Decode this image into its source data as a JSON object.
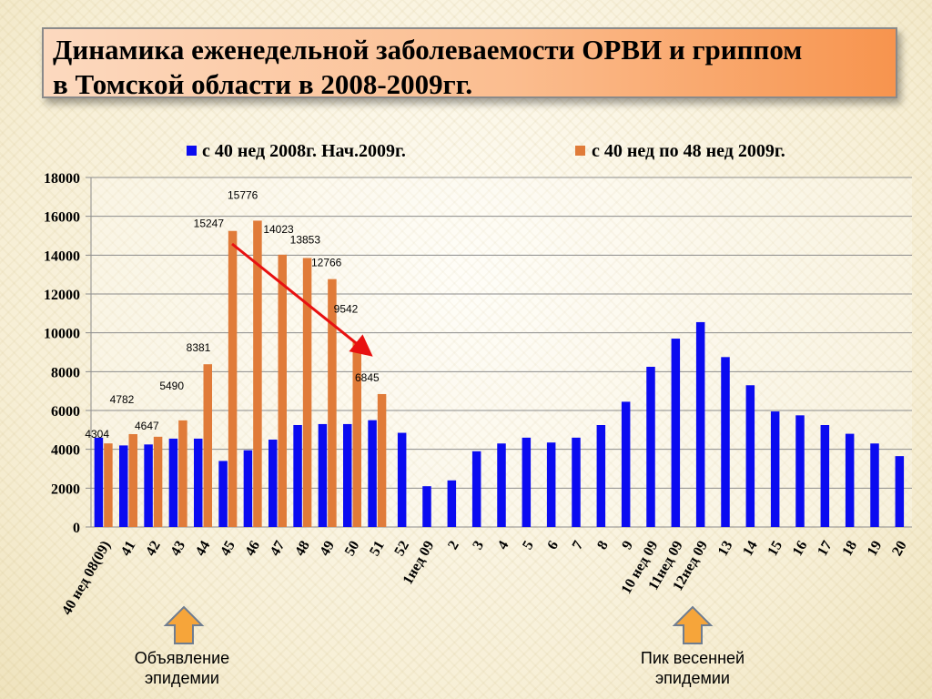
{
  "title": {
    "line1": "Динамика еженедельной заболеваемости ОРВИ и гриппом",
    "line2": "в Томской области в 2008-2009гг."
  },
  "annotations": {
    "left_note_line1": "Объявление",
    "left_note_line2": "эпидемии",
    "right_note_line1": "Пик весенней",
    "right_note_line2": "эпидемии"
  },
  "colors": {
    "series_blue": "#0b0bf0",
    "series_orange": "#e07b39",
    "arrow_red": "#e81010",
    "up_arrow_fill": "#f6a53a",
    "up_arrow_stroke": "#6f7d90"
  },
  "icons": [
    "up-arrow-icon",
    "trend-arrow-icon"
  ],
  "chart_data": {
    "type": "bar",
    "legend_position": "top",
    "grid": true,
    "ylim": [
      0,
      18000
    ],
    "yticks": [
      0,
      2000,
      4000,
      6000,
      8000,
      10000,
      12000,
      14000,
      16000,
      18000
    ],
    "categories": [
      "40 нед 08(09)",
      "41",
      "42",
      "43",
      "44",
      "45",
      "46",
      "47",
      "48",
      "49",
      "50",
      "51",
      "52",
      "1нед 09",
      "2",
      "3",
      "4",
      "5",
      "6",
      "7",
      "8",
      "9",
      "10 нед 09",
      "11нед 09",
      "12нед 09",
      "13",
      "14",
      "15",
      "16",
      "17",
      "18",
      "19",
      "20"
    ],
    "series": [
      {
        "name": "с 40 нед 2008г. Нач.2009г.",
        "values": [
          4600,
          4200,
          4250,
          4550,
          4550,
          3400,
          3950,
          4500,
          5250,
          5300,
          5300,
          5500,
          4850,
          2100,
          2400,
          3900,
          4300,
          4600,
          4350,
          4600,
          5250,
          6450,
          8250,
          9700,
          10550,
          8750,
          7300,
          5950,
          5750,
          5250,
          4800,
          4300,
          3650
        ],
        "labels": []
      },
      {
        "name": "с 40 нед по 48 нед 2009г.",
        "values": [
          4304,
          4782,
          4647,
          5490,
          8381,
          15247,
          15776,
          14023,
          13853,
          12766,
          9542,
          6845,
          null,
          null,
          null,
          null,
          null,
          null,
          null,
          null,
          null,
          null,
          null,
          null,
          null,
          null,
          null,
          null,
          null,
          null,
          null,
          null,
          null
        ],
        "labels": [
          "4304",
          "4782",
          "4647",
          "5490",
          "8381",
          "15247",
          "15776",
          "14023",
          "13853",
          "12766",
          "9542",
          "6845"
        ]
      }
    ]
  }
}
